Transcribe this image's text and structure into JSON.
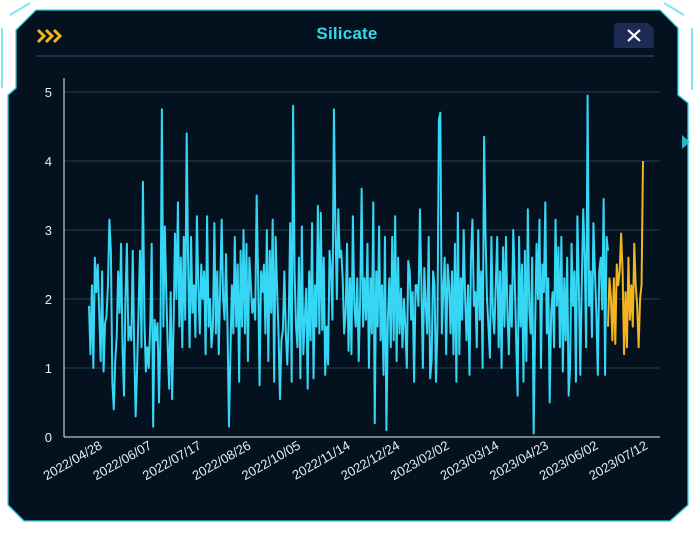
{
  "window": {
    "title": "Silicate",
    "close_icon": "close-icon",
    "menu_icon": "chevrons-right-icon",
    "colors": {
      "background": "#04111f",
      "border": "#2ad4ea",
      "title": "#36d6ee",
      "accent": "#f2b41f"
    }
  },
  "chart_data": {
    "type": "line",
    "title": "Silicate",
    "xlabel": "",
    "ylabel": "",
    "ylim": [
      0,
      5
    ],
    "yticks": [
      0,
      1,
      2,
      3,
      4,
      5
    ],
    "grid": "horizontal",
    "x_tick_labels": [
      "2022/04/28",
      "2022/06/07",
      "2022/07/17",
      "2022/08/26",
      "2022/10/05",
      "2022/11/14",
      "2022/12/24",
      "2023/02/02",
      "2023/03/14",
      "2023/04/23",
      "2023/06/02",
      "2023/07/12"
    ],
    "x_start": "2022/04/28",
    "series": [
      {
        "color": "#36d6f5",
        "values": [
          1.9,
          1.2,
          2.2,
          1.0,
          2.6,
          2.1,
          2.5,
          1.8,
          1.1,
          2.4,
          0.95,
          1.65,
          1.75,
          2.2,
          3.15,
          2.7,
          0.8,
          0.4,
          1.1,
          1.45,
          2.4,
          1.8,
          2.8,
          1.3,
          0.6,
          2.0,
          2.8,
          1.4,
          1.6,
          1.4,
          2.7,
          1.3,
          0.3,
          1.0,
          1.85,
          2.7,
          1.3,
          3.7,
          1.7,
          0.95,
          1.3,
          1.0,
          1.6,
          2.8,
          0.15,
          1.7,
          1.4,
          1.65,
          0.5,
          1.45,
          4.75,
          1.6,
          3.05,
          2.1,
          1.3,
          0.7,
          2.1,
          0.55,
          1.6,
          2.95,
          2.0,
          3.4,
          1.6,
          2.6,
          1.3,
          2.9,
          1.7,
          4.4,
          2.5,
          1.3,
          2.9,
          1.8,
          2.2,
          1.45,
          3.2,
          2.2,
          1.5,
          2.5,
          2.0,
          2.4,
          1.2,
          3.2,
          1.6,
          2.0,
          1.3,
          1.6,
          3.1,
          1.5,
          2.4,
          1.2,
          2.2,
          3.15,
          2.0,
          1.7,
          2.65,
          1.6,
          0.15,
          1.2,
          2.2,
          1.5,
          2.9,
          1.6,
          2.5,
          0.8,
          2.7,
          1.6,
          3.0,
          1.5,
          2.8,
          1.1,
          2.6,
          2.2,
          1.8,
          2.0,
          1.7,
          3.5,
          2.3,
          0.75,
          2.4,
          2.1,
          2.5,
          1.5,
          3.0,
          1.1,
          2.7,
          1.8,
          3.15,
          0.8,
          2.9,
          2.15,
          1.5,
          0.55,
          1.4,
          1.55,
          2.4,
          1.5,
          1.05,
          1.7,
          3.1,
          0.8,
          4.8,
          2.4,
          1.6,
          1.3,
          2.6,
          0.85,
          3.05,
          1.2,
          1.7,
          2.15,
          0.7,
          2.4,
          1.4,
          3.1,
          0.85,
          2.2,
          1.6,
          3.35,
          1.5,
          3.25,
          1.55,
          2.6,
          0.9,
          1.6,
          1.05,
          2.7,
          2.4,
          1.7,
          4.75,
          3.1,
          2.0,
          3.3,
          2.6,
          2.7,
          2.3,
          1.5,
          1.8,
          2.8,
          1.25,
          2.3,
          1.2,
          3.2,
          1.9,
          1.6,
          2.3,
          1.1,
          2.0,
          3.6,
          1.6,
          2.3,
          1.7,
          2.8,
          1.0,
          2.3,
          1.5,
          3.4,
          0.2,
          2.4,
          1.6,
          3.05,
          1.4,
          2.2,
          0.9,
          2.9,
          0.1,
          1.7,
          2.3,
          1.3,
          2.9,
          1.4,
          3.2,
          1.1,
          2.6,
          1.5,
          2.15,
          1.3,
          2.0,
          1.6,
          1.0,
          2.55,
          2.4,
          1.7,
          2.1,
          0.8,
          2.2,
          2.2,
          1.9,
          3.3,
          2.2,
          1.0,
          2.45,
          1.9,
          1.5,
          2.9,
          0.85,
          1.1,
          2.4,
          2.2,
          0.8,
          1.6,
          4.6,
          4.7,
          1.5,
          2.1,
          2.6,
          1.2,
          2.5,
          2.2,
          1.5,
          2.4,
          1.2,
          2.8,
          0.8,
          3.25,
          1.2,
          2.3,
          1.7,
          3.0,
          2.0,
          1.4,
          2.2,
          0.9,
          2.6,
          3.15,
          1.9,
          2.1,
          1.3,
          3.0,
          1.7,
          2.4,
          1.0,
          4.35,
          2.9,
          2.0,
          1.6,
          1.15,
          2.9,
          1.8,
          1.5,
          2.2,
          2.9,
          1.3,
          2.4,
          1.0,
          2.75,
          1.6,
          2.9,
          1.8,
          1.2,
          2.2,
          1.6,
          3.0,
          2.3,
          1.4,
          0.6,
          2.9,
          1.6,
          2.5,
          0.8,
          2.7,
          1.1,
          3.3,
          1.85,
          1.5,
          2.6,
          0.05,
          1.6,
          2.8,
          2.0,
          3.15,
          1.0,
          2.5,
          2.1,
          3.4,
          1.5,
          2.3,
          0.5,
          1.8,
          2.1,
          1.3,
          3.15,
          1.9,
          2.75,
          1.3,
          2.9,
          0.95,
          2.3,
          1.4,
          2.6,
          0.6,
          1.0,
          2.8,
          1.9,
          2.4,
          0.8,
          3.2,
          2.2,
          0.9,
          2.2,
          3.3,
          2.6,
          1.3,
          4.95,
          1.9,
          2.4,
          1.45,
          3.1,
          2.4,
          1.8,
          0.9,
          2.4,
          2.6,
          1.85,
          3.45,
          0.9,
          2.9,
          2.7
        ]
      },
      {
        "color": "#f2b41f",
        "values": [
          1.6,
          2.3,
          2.0,
          1.4,
          2.3,
          1.35,
          2.5,
          2.2,
          2.4,
          2.95,
          2.4,
          1.2,
          2.1,
          1.3,
          2.6,
          1.7,
          2.2,
          1.6,
          2.8,
          2.2,
          1.9,
          1.3,
          2.0,
          2.2,
          4.0
        ]
      }
    ]
  }
}
